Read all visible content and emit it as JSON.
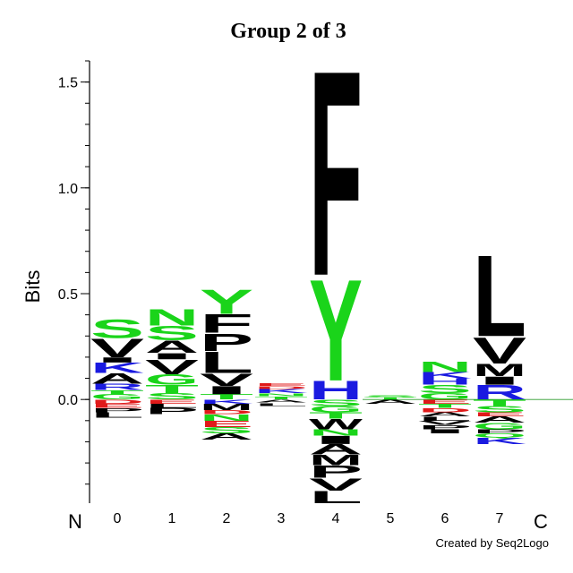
{
  "chart_data": {
    "type": "logo",
    "title": "Group 2 of 3",
    "y_label": "Bits",
    "n_label": "N",
    "c_label": "C",
    "footer": "Created by Seq2Logo",
    "ylim": [
      -0.49,
      1.6
    ],
    "yticks": [
      {
        "value": 0,
        "label": "0.0"
      },
      0.5,
      {
        "value": 1,
        "label": "1.0"
      },
      1.5
    ],
    "minor_yticks": [
      -0.4,
      -0.3,
      -0.2,
      -0.1,
      0,
      0.1,
      0.2,
      0.3,
      0.4,
      0.5,
      0.6,
      0.7,
      0.8,
      0.9,
      1,
      1.1,
      1.2,
      1.3,
      1.4,
      1.5,
      1.6
    ],
    "letter_colors": {
      "S": "#1ad41a",
      "G": "#1ad41a",
      "Y": "#1ad41a",
      "N": "#1ad41a",
      "T": "#1ad41a",
      "Q": "#1ad41a",
      "C": "#1ad41a",
      "K": "#1a1ae0",
      "R": "#1a1ae0",
      "H": "#1a1ae0",
      "D": "#e01a1a",
      "E": "#e01a1a",
      "A": "#000000",
      "V": "#000000",
      "L": "#000000",
      "I": "#000000",
      "P": "#000000",
      "F": "#000000",
      "M": "#000000",
      "W": "#000000"
    },
    "positions": [
      {
        "label": "0",
        "letters": [
          "G",
          "T",
          "R",
          "A",
          "K",
          "I",
          "V",
          "S",
          "D",
          "E",
          "P",
          "L"
        ],
        "values": [
          0.025,
          0.02,
          0.03,
          0.05,
          0.05,
          0.025,
          0.09,
          0.09,
          -0.02,
          -0.02,
          -0.02,
          -0.025
        ]
      },
      {
        "label": "1",
        "letters": [
          "S",
          "T",
          "G",
          "V",
          "I",
          "A",
          "S",
          "N",
          "E",
          "L",
          "P"
        ],
        "values": [
          0.03,
          0.04,
          0.05,
          0.07,
          0.03,
          0.06,
          0.07,
          0.08,
          -0.02,
          -0.02,
          -0.03
        ]
      },
      {
        "label": "2",
        "letters": [
          "T",
          "I",
          "V",
          "L",
          "P",
          "F",
          "Y",
          "K",
          "M",
          "D",
          "N",
          "E",
          "S",
          "A"
        ],
        "values": [
          0.025,
          0.04,
          0.06,
          0.105,
          0.085,
          0.09,
          0.12,
          -0.02,
          -0.03,
          -0.02,
          -0.03,
          -0.03,
          -0.03,
          -0.03
        ]
      },
      {
        "label": "3",
        "letters": [
          "T",
          "N",
          "K",
          "D",
          "E",
          "A",
          "L"
        ],
        "values": [
          0.015,
          0.015,
          0.02,
          0.015,
          0.015,
          -0.015,
          -0.015
        ]
      },
      {
        "label": "4",
        "letters": [
          "H",
          "Y",
          "F",
          "S",
          "G",
          "T",
          "W",
          "N",
          "I",
          "A",
          "M",
          "P",
          "V",
          "L"
        ],
        "values": [
          0.09,
          0.5,
          1.01,
          -0.03,
          -0.03,
          -0.03,
          -0.05,
          -0.03,
          -0.04,
          -0.05,
          -0.05,
          -0.06,
          -0.06,
          -0.06
        ]
      },
      {
        "label": "5",
        "letters": [
          "T",
          "S",
          "A"
        ],
        "values": [
          0.01,
          0.01,
          -0.02
        ]
      },
      {
        "label": "6",
        "letters": [
          "G",
          "S",
          "H",
          "K",
          "N",
          "E",
          "T",
          "D",
          "A",
          "L",
          "V",
          "P",
          "I"
        ],
        "values": [
          0.03,
          0.04,
          0.03,
          0.03,
          0.05,
          -0.02,
          -0.02,
          -0.02,
          -0.02,
          -0.02,
          -0.02,
          -0.02,
          -0.02
        ]
      },
      {
        "label": "7",
        "letters": [
          "R",
          "I",
          "M",
          "V",
          "L",
          "T",
          "S",
          "E",
          "A",
          "G",
          "P",
          "Q",
          "K"
        ],
        "values": [
          0.07,
          0.04,
          0.06,
          0.13,
          0.4,
          -0.03,
          -0.03,
          -0.02,
          -0.03,
          -0.03,
          -0.02,
          -0.02,
          -0.03
        ]
      }
    ]
  }
}
